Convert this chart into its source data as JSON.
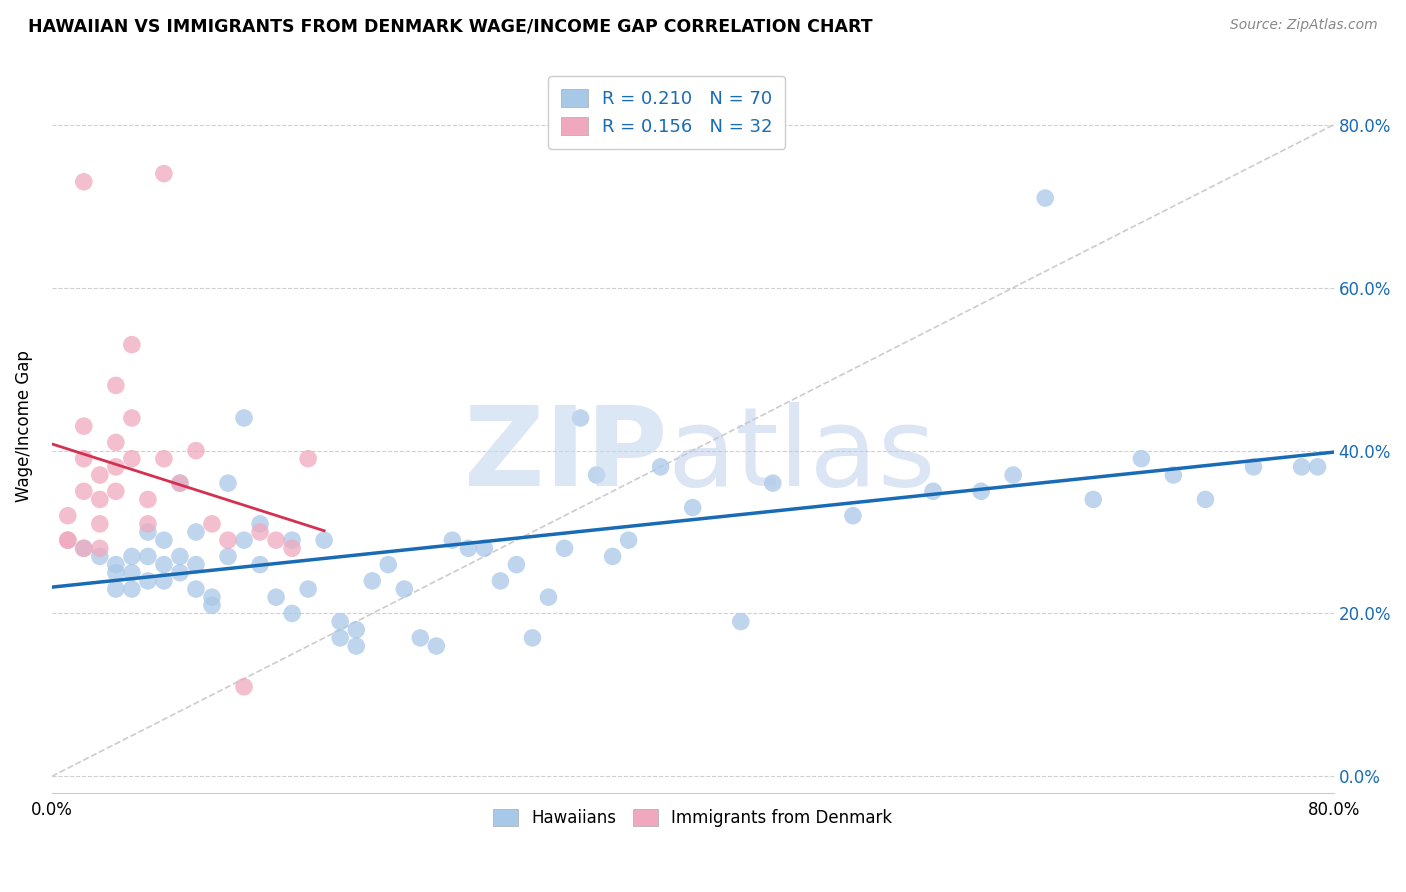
{
  "title": "HAWAIIAN VS IMMIGRANTS FROM DENMARK WAGE/INCOME GAP CORRELATION CHART",
  "source": "Source: ZipAtlas.com",
  "ylabel": "Wage/Income Gap",
  "xlim": [
    0.0,
    0.8
  ],
  "ylim": [
    -0.02,
    0.88
  ],
  "yticks": [
    0.0,
    0.2,
    0.4,
    0.6,
    0.8
  ],
  "xticks": [
    0.0,
    0.1,
    0.2,
    0.3,
    0.4,
    0.5,
    0.6,
    0.7,
    0.8
  ],
  "xtick_labels": [
    "0.0%",
    "",
    "",
    "",
    "",
    "",
    "",
    "",
    "80.0%"
  ],
  "hawaiian_color": "#a8c8e8",
  "denmark_color": "#f0a8be",
  "hawaiian_line_color": "#1a6bb5",
  "denmark_line_color": "#d43050",
  "diagonal_color": "#cccccc",
  "watermark_zip_color": "#c5d8f0",
  "watermark_atlas_color": "#b8cce8",
  "hawaiian_x": [
    0.02,
    0.03,
    0.04,
    0.04,
    0.04,
    0.05,
    0.05,
    0.05,
    0.06,
    0.06,
    0.06,
    0.07,
    0.07,
    0.07,
    0.08,
    0.08,
    0.08,
    0.09,
    0.09,
    0.09,
    0.1,
    0.1,
    0.11,
    0.11,
    0.12,
    0.12,
    0.13,
    0.13,
    0.14,
    0.15,
    0.15,
    0.16,
    0.17,
    0.18,
    0.18,
    0.19,
    0.19,
    0.2,
    0.21,
    0.22,
    0.23,
    0.24,
    0.25,
    0.26,
    0.27,
    0.28,
    0.29,
    0.3,
    0.31,
    0.32,
    0.33,
    0.34,
    0.35,
    0.36,
    0.38,
    0.4,
    0.43,
    0.45,
    0.5,
    0.55,
    0.58,
    0.6,
    0.62,
    0.65,
    0.68,
    0.7,
    0.72,
    0.75,
    0.78,
    0.79
  ],
  "hawaiian_y": [
    0.28,
    0.27,
    0.26,
    0.25,
    0.23,
    0.27,
    0.25,
    0.23,
    0.3,
    0.27,
    0.24,
    0.29,
    0.26,
    0.24,
    0.36,
    0.27,
    0.25,
    0.3,
    0.26,
    0.23,
    0.22,
    0.21,
    0.36,
    0.27,
    0.44,
    0.29,
    0.31,
    0.26,
    0.22,
    0.2,
    0.29,
    0.23,
    0.29,
    0.19,
    0.17,
    0.18,
    0.16,
    0.24,
    0.26,
    0.23,
    0.17,
    0.16,
    0.29,
    0.28,
    0.28,
    0.24,
    0.26,
    0.17,
    0.22,
    0.28,
    0.44,
    0.37,
    0.27,
    0.29,
    0.38,
    0.33,
    0.19,
    0.36,
    0.32,
    0.35,
    0.35,
    0.37,
    0.71,
    0.34,
    0.39,
    0.37,
    0.34,
    0.38,
    0.38,
    0.38
  ],
  "denmark_x": [
    0.01,
    0.01,
    0.01,
    0.02,
    0.02,
    0.02,
    0.02,
    0.02,
    0.03,
    0.03,
    0.03,
    0.03,
    0.04,
    0.04,
    0.04,
    0.04,
    0.05,
    0.05,
    0.05,
    0.06,
    0.06,
    0.07,
    0.07,
    0.08,
    0.09,
    0.1,
    0.11,
    0.12,
    0.13,
    0.14,
    0.15,
    0.16
  ],
  "denmark_y": [
    0.29,
    0.32,
    0.29,
    0.73,
    0.43,
    0.39,
    0.35,
    0.28,
    0.37,
    0.34,
    0.31,
    0.28,
    0.48,
    0.41,
    0.38,
    0.35,
    0.53,
    0.44,
    0.39,
    0.34,
    0.31,
    0.74,
    0.39,
    0.36,
    0.4,
    0.31,
    0.29,
    0.11,
    0.3,
    0.29,
    0.28,
    0.39
  ]
}
